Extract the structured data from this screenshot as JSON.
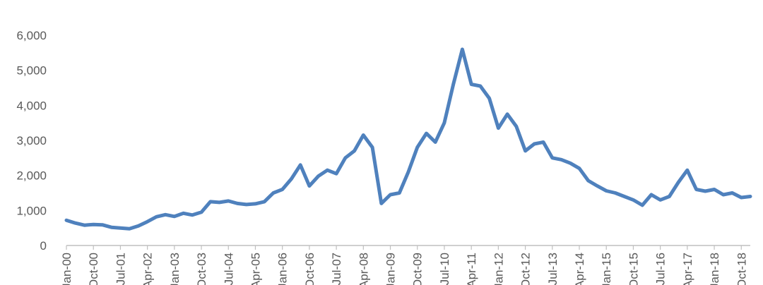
{
  "chart_data": {
    "type": "line",
    "title": "",
    "xlabel": "",
    "ylabel": "",
    "ylim": [
      0,
      6000
    ],
    "yticks": [
      "0",
      "1,000",
      "2,000",
      "3,000",
      "4,000",
      "5,000",
      "6,000"
    ],
    "yticks_values": [
      0,
      1000,
      2000,
      3000,
      4000,
      5000,
      6000
    ],
    "xticks": [
      "Jan-00",
      "Oct-00",
      "Jul-01",
      "Apr-02",
      "Jan-03",
      "Oct-03",
      "Jul-04",
      "Apr-05",
      "Jan-06",
      "Oct-06",
      "Jul-07",
      "Apr-08",
      "Jan-09",
      "Oct-09",
      "Jul-10",
      "Apr-11",
      "Jan-12",
      "Oct-12",
      "Jul-13",
      "Apr-14",
      "Jan-15",
      "Oct-15",
      "Jul-16",
      "Apr-17",
      "Jan-18",
      "Oct-18"
    ],
    "grid": false,
    "legend": "none",
    "color": "#4f81bd",
    "series": [
      {
        "x": [
          "Jan-00",
          "Apr-00",
          "Jul-00",
          "Oct-00",
          "Jan-01",
          "Apr-01",
          "Jul-01",
          "Oct-01",
          "Jan-02",
          "Apr-02",
          "Jul-02",
          "Oct-02",
          "Jan-03",
          "Apr-03",
          "Jul-03",
          "Oct-03",
          "Jan-04",
          "Apr-04",
          "Jul-04",
          "Oct-04",
          "Jan-05",
          "Apr-05",
          "Jul-05",
          "Oct-05",
          "Jan-06",
          "Apr-06",
          "Jul-06",
          "Oct-06",
          "Jan-07",
          "Apr-07",
          "Jul-07",
          "Oct-07",
          "Jan-08",
          "Apr-08",
          "Jul-08",
          "Oct-08",
          "Jan-09",
          "Apr-09",
          "Jul-09",
          "Oct-09",
          "Jan-10",
          "Apr-10",
          "Jul-10",
          "Oct-10",
          "Jan-11",
          "Apr-11",
          "Jul-11",
          "Oct-11",
          "Jan-12",
          "Apr-12",
          "Jul-12",
          "Oct-12",
          "Jan-13",
          "Apr-13",
          "Jul-13",
          "Oct-13",
          "Jan-14",
          "Apr-14",
          "Jul-14",
          "Oct-14",
          "Jan-15",
          "Apr-15",
          "Jul-15",
          "Oct-15",
          "Jan-16",
          "Apr-16",
          "Jul-16",
          "Oct-16",
          "Jan-17",
          "Apr-17",
          "Jul-17",
          "Oct-17",
          "Jan-18",
          "Apr-18",
          "Jul-18",
          "Oct-18",
          "Jan-19"
        ],
        "values": [
          720,
          640,
          580,
          600,
          590,
          520,
          500,
          480,
          560,
          680,
          820,
          880,
          830,
          920,
          870,
          950,
          1250,
          1230,
          1270,
          1200,
          1170,
          1190,
          1250,
          1500,
          1600,
          1900,
          2300,
          1700,
          1980,
          2150,
          2050,
          2500,
          2700,
          3150,
          2800,
          1200,
          1450,
          1500,
          2100,
          2800,
          3200,
          2950,
          3500,
          4600,
          5600,
          4600,
          4550,
          4200,
          3350,
          3750,
          3400,
          2700,
          2900,
          2950,
          2500,
          2450,
          2350,
          2200,
          1850,
          1700,
          1560,
          1500,
          1400,
          1300,
          1150,
          1450,
          1300,
          1400,
          1800,
          2150,
          1600,
          1550,
          1600,
          1450,
          1500,
          1370,
          1400
        ]
      }
    ]
  }
}
